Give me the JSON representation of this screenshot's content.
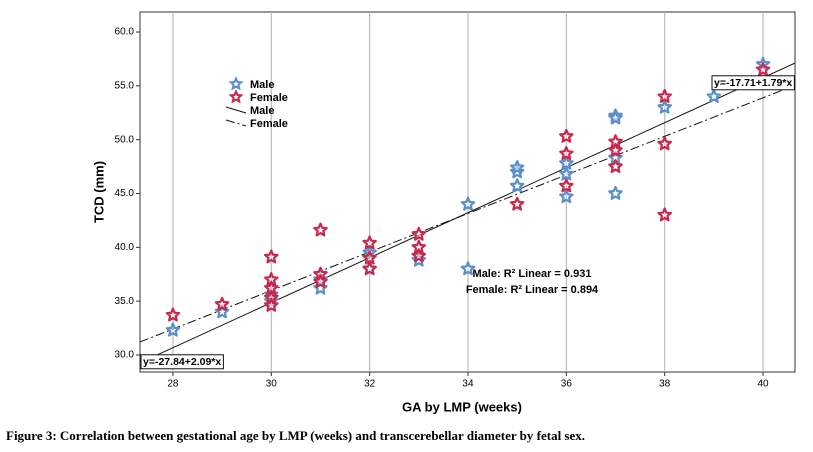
{
  "chart_data": {
    "type": "scatter",
    "x_label": "GA by LMP (weeks)",
    "y_label": "TCD (mm)",
    "caption": "Figure 3: Correlation between gestational age by LMP (weeks) and transcerebellar diameter by fetal sex.",
    "xlim": [
      27.33,
      40.65
    ],
    "ylim": [
      28.42,
      61.86
    ],
    "xticks": [
      28,
      30,
      32,
      34,
      36,
      38,
      40
    ],
    "yticks": [
      {
        "value": 30,
        "label": "30.0"
      },
      {
        "value": 35,
        "label": "35.0"
      },
      {
        "value": 40,
        "label": "40.0"
      },
      {
        "value": 45,
        "label": "45.0"
      },
      {
        "value": 50,
        "label": "50.0"
      },
      {
        "value": 55,
        "label": "55.0"
      },
      {
        "value": 60,
        "label": "60.0"
      }
    ],
    "grid": "x",
    "series": [
      {
        "name": "Male",
        "color": "#5b8fc9",
        "x": [
          28,
          29,
          30,
          30,
          31,
          31,
          32,
          32,
          33,
          34,
          34,
          35,
          35,
          35,
          36,
          36,
          36,
          37,
          37,
          37,
          37,
          38,
          39,
          40
        ],
        "values": [
          32.3,
          34.0,
          35.0,
          35.6,
          36.2,
          37.0,
          38.0,
          39.5,
          38.8,
          44.0,
          38.0,
          45.7,
          47.0,
          47.4,
          44.7,
          46.8,
          47.8,
          45.0,
          48.3,
          52.2,
          52.0,
          53.0,
          54.0,
          57.0
        ],
        "fit": {
          "intercept": -27.84,
          "slope": 2.09,
          "label": "y=-27.84+2.09*x",
          "dash": "none"
        },
        "r2_label": "Male: R² Linear = 0.931"
      },
      {
        "name": "Female",
        "color": "#c8284c",
        "x": [
          28,
          29,
          30,
          30,
          30,
          30,
          30,
          31,
          31,
          31,
          32,
          32,
          32,
          33,
          33,
          33,
          35,
          36,
          36,
          36,
          37,
          37,
          37,
          38,
          38,
          38,
          40
        ],
        "values": [
          33.7,
          34.7,
          39.1,
          37.0,
          36.2,
          35.3,
          34.6,
          41.6,
          37.5,
          36.8,
          40.4,
          39.0,
          38.0,
          41.2,
          40.0,
          39.2,
          44.0,
          50.3,
          48.7,
          45.7,
          49.8,
          49.0,
          47.5,
          54.0,
          49.6,
          43.0,
          56.5
        ],
        "fit": {
          "intercept": -17.71,
          "slope": 1.79,
          "label": "y=-17.71+1.79*x",
          "dash": "9 3 2 3"
        },
        "r2_label": "Female: R² Linear = 0.894"
      }
    ]
  }
}
